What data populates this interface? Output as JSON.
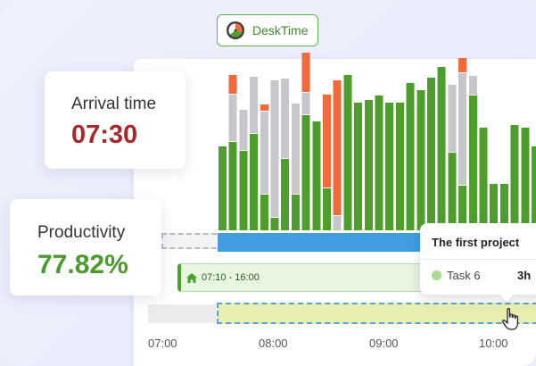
{
  "app": {
    "name": "DeskTime",
    "logo_icon": "clock-logo-icon"
  },
  "arrival": {
    "label": "Arrival time",
    "value": "07:30"
  },
  "productivity": {
    "label": "Productivity",
    "value": "77.82%"
  },
  "schedule": {
    "icon": "home-icon",
    "text": "07:10 - 16:00"
  },
  "popup": {
    "title": "The first project",
    "task": "Task 6",
    "hours": "3h"
  },
  "timeline": {
    "ticks": [
      "07:00",
      "08:00",
      "09:00",
      "10:00"
    ]
  },
  "colors": {
    "productive": "#4e9e2e",
    "neutral": "#c6c6cb",
    "unproductive": "#f26a3b",
    "arrival": "#a8272b",
    "productivity": "#4b9a2c",
    "timeline_blue": "#3f9de0"
  },
  "activity_bars": [
    {
      "productive": 0.54,
      "neutral": 0.0,
      "unproductive": 0.0
    },
    {
      "productive": 0.57,
      "neutral": 0.3,
      "unproductive": 0.12
    },
    {
      "productive": 0.51,
      "neutral": 0.26,
      "unproductive": 0.0
    },
    {
      "productive": 0.62,
      "neutral": 0.36,
      "unproductive": 0.0
    },
    {
      "productive": 0.23,
      "neutral": 0.53,
      "unproductive": 0.04
    },
    {
      "productive": 0.08,
      "neutral": 0.88,
      "unproductive": 0.0
    },
    {
      "productive": 0.46,
      "neutral": 0.51,
      "unproductive": 0.0
    },
    {
      "productive": 0.23,
      "neutral": 0.58,
      "unproductive": 0.0
    },
    {
      "productive": 0.74,
      "neutral": 0.14,
      "unproductive": 0.25
    },
    {
      "productive": 0.7,
      "neutral": 0.0,
      "unproductive": 0.0
    },
    {
      "productive": 0.27,
      "neutral": 0.0,
      "unproductive": 0.6
    },
    {
      "productive": 0.0,
      "neutral": 0.09,
      "unproductive": 0.87
    },
    {
      "productive": 1.0,
      "neutral": 0.0,
      "unproductive": 0.0
    },
    {
      "productive": 0.82,
      "neutral": 0.0,
      "unproductive": 0.0
    },
    {
      "productive": 0.84,
      "neutral": 0.0,
      "unproductive": 0.0
    },
    {
      "productive": 0.87,
      "neutral": 0.0,
      "unproductive": 0.0
    },
    {
      "productive": 0.82,
      "neutral": 0.0,
      "unproductive": 0.0
    },
    {
      "productive": 0.82,
      "neutral": 0.0,
      "unproductive": 0.0
    },
    {
      "productive": 0.95,
      "neutral": 0.0,
      "unproductive": 0.0
    },
    {
      "productive": 0.9,
      "neutral": 0.0,
      "unproductive": 0.0
    },
    {
      "productive": 0.98,
      "neutral": 0.0,
      "unproductive": 0.0
    },
    {
      "productive": 1.05,
      "neutral": 0.0,
      "unproductive": 0.0
    },
    {
      "productive": 0.5,
      "neutral": 0.43,
      "unproductive": 0.0
    },
    {
      "productive": 0.29,
      "neutral": 0.72,
      "unproductive": 0.09
    },
    {
      "productive": 0.87,
      "neutral": 0.12,
      "unproductive": 0.0
    },
    {
      "productive": 0.66,
      "neutral": 0.0,
      "unproductive": 0.0
    },
    {
      "productive": 0.3,
      "neutral": 0.0,
      "unproductive": 0.0
    },
    {
      "productive": 0.3,
      "neutral": 0.0,
      "unproductive": 0.0
    },
    {
      "productive": 0.68,
      "neutral": 0.0,
      "unproductive": 0.0
    },
    {
      "productive": 0.66,
      "neutral": 0.0,
      "unproductive": 0.0
    },
    {
      "productive": 0.54,
      "neutral": 0.0,
      "unproductive": 0.0
    },
    {
      "productive": 0.49,
      "neutral": 0.0,
      "unproductive": 0.0
    },
    {
      "productive": 0.47,
      "neutral": 0.0,
      "unproductive": 0.0
    }
  ]
}
